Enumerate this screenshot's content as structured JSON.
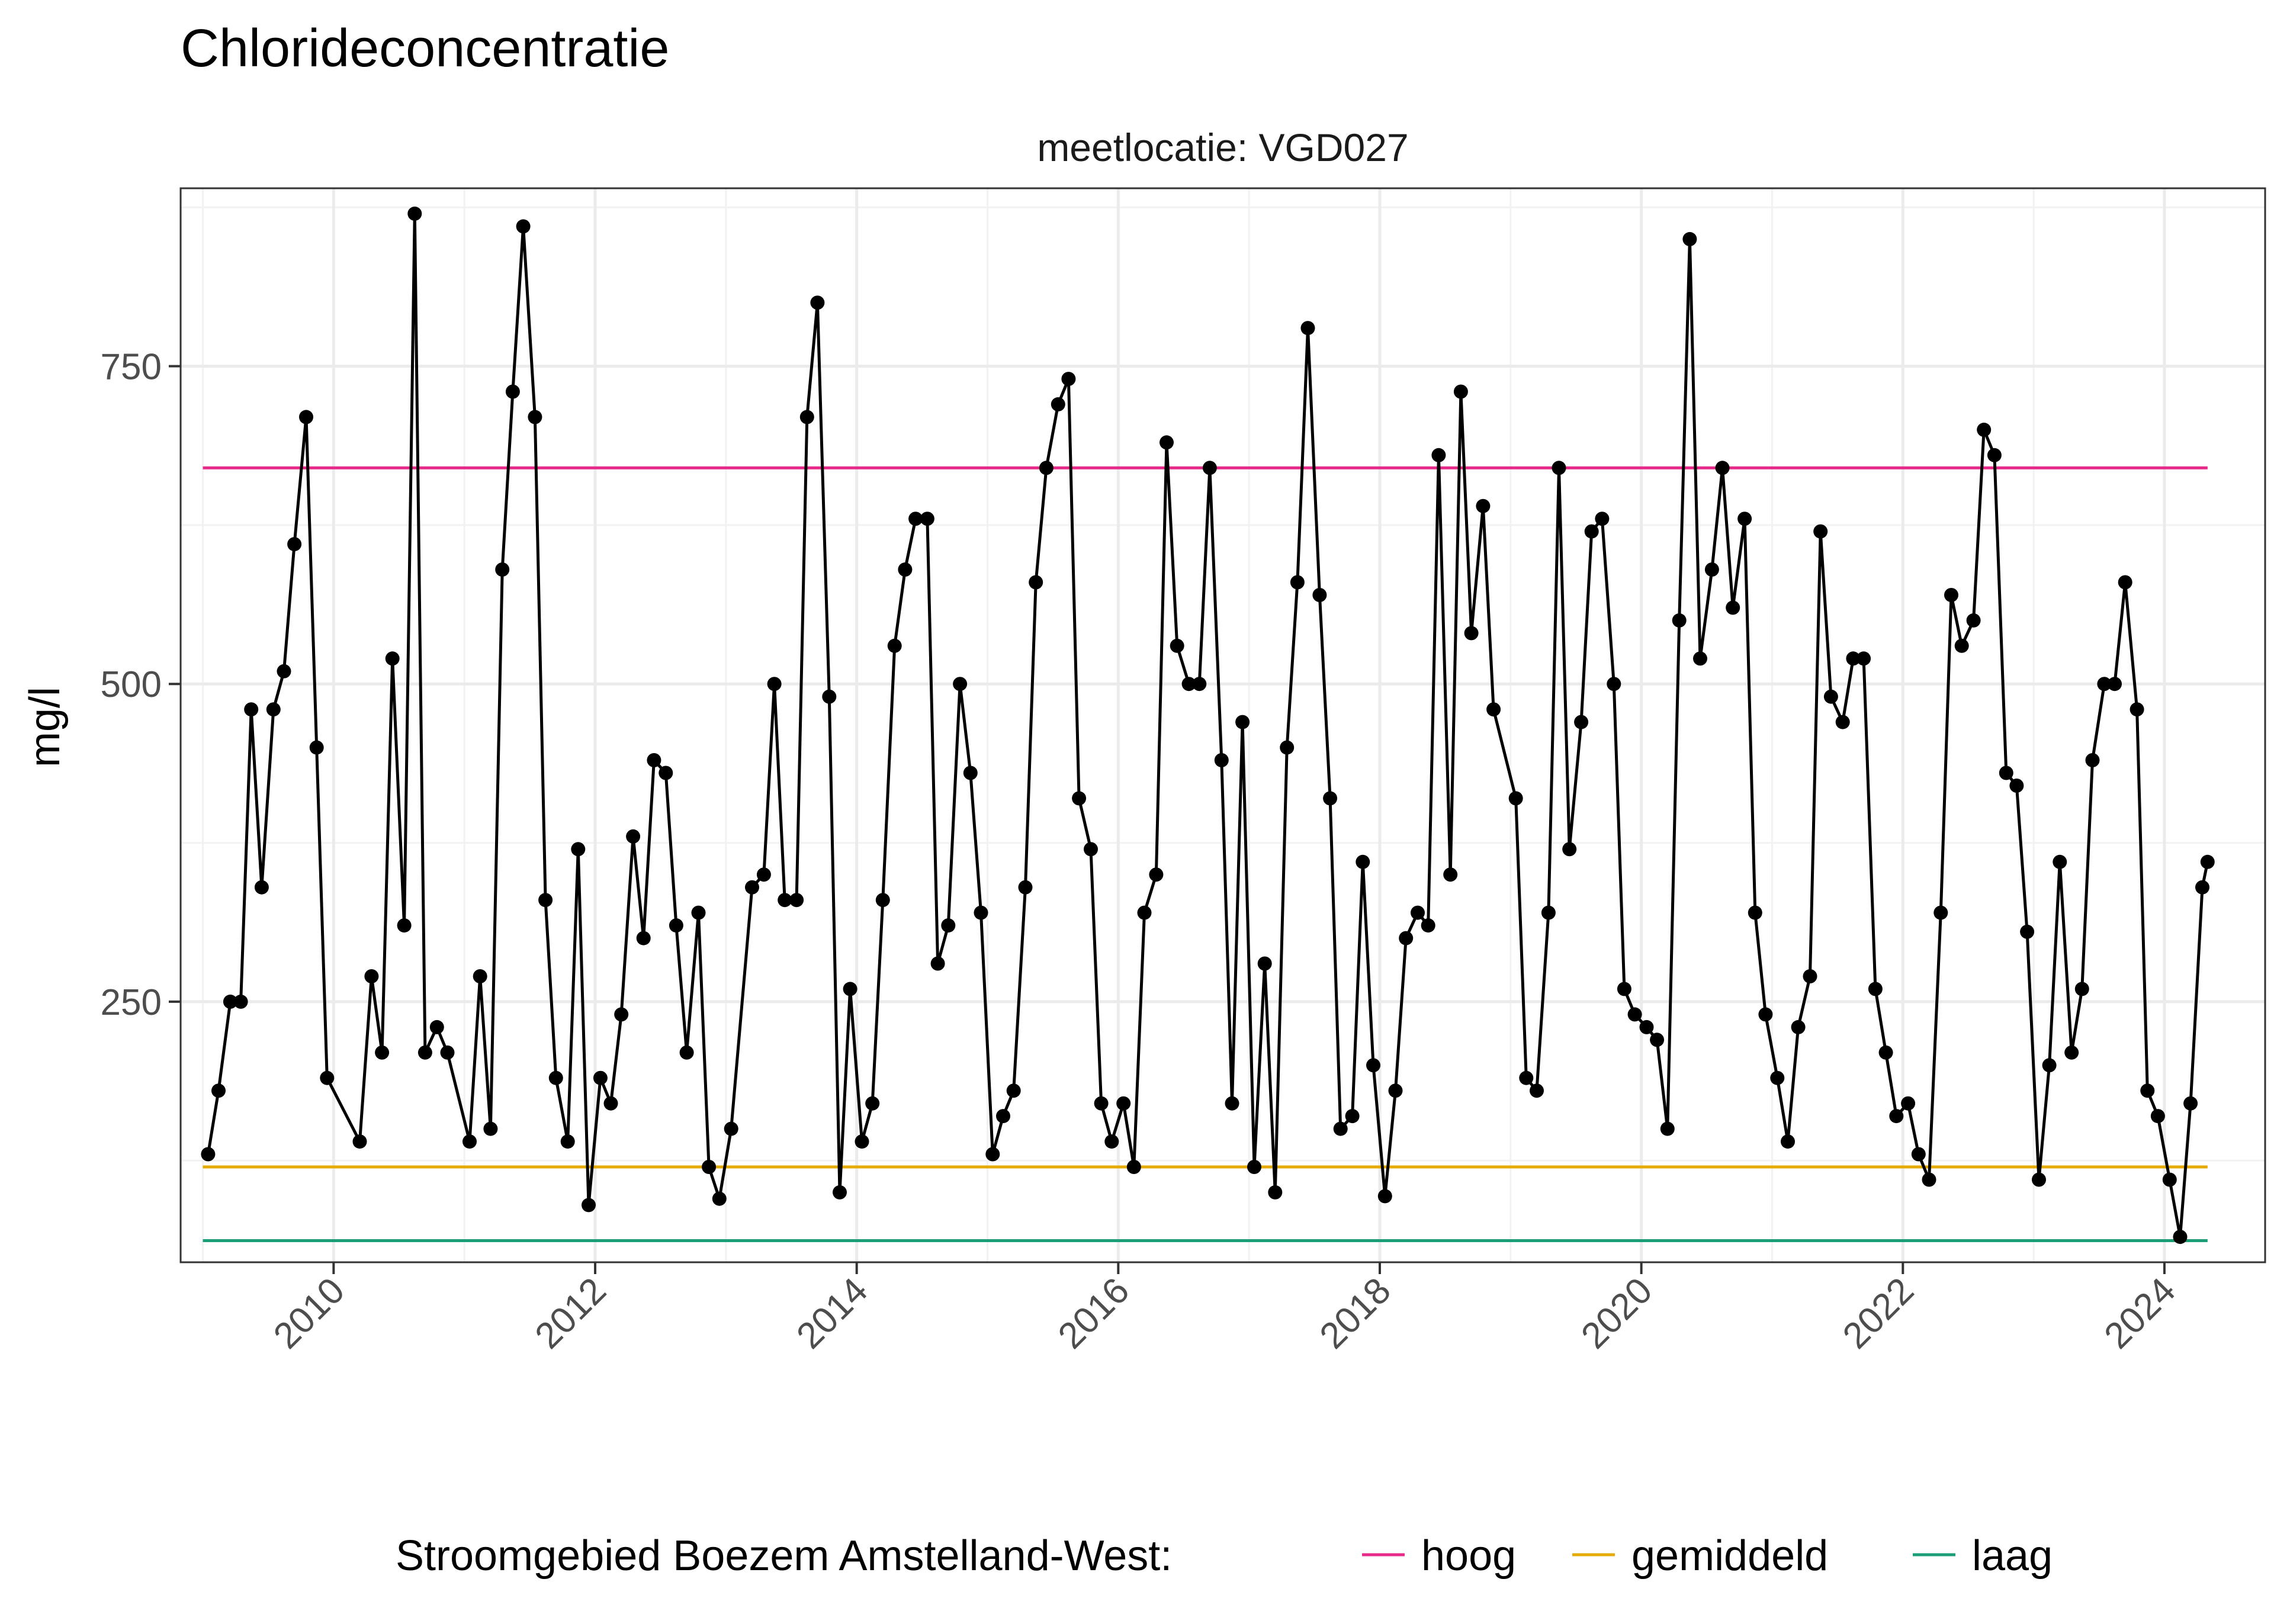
{
  "chart_data": {
    "type": "line",
    "title": "Chlorideconcentratie",
    "subtitle": "meetlocatie: VGD027",
    "xlabel": "",
    "ylabel": "mg/l",
    "xlim": [
      2008.83,
      2024.77
    ],
    "ylim": [
      45,
      890
    ],
    "x_ticks": [
      2010,
      2012,
      2014,
      2016,
      2018,
      2020,
      2022,
      2024
    ],
    "y_ticks": [
      250,
      500,
      750
    ],
    "grid": true,
    "legend": {
      "position": "bottom",
      "title": "Stroomgebied Boezem Amstelland-West:",
      "entries": [
        {
          "label": "hoog",
          "color": "#e7298a"
        },
        {
          "label": "gemiddeld",
          "color": "#e6ab02"
        },
        {
          "label": "laag",
          "color": "#1b9e77"
        }
      ]
    },
    "reference_lines": [
      {
        "name": "hoog",
        "value": 670,
        "color": "#e7298a",
        "x_range": [
          2009.0,
          2024.33
        ]
      },
      {
        "name": "gemiddeld",
        "value": 120,
        "color": "#e6ab02",
        "x_range": [
          2009.0,
          2024.33
        ]
      },
      {
        "name": "laag",
        "value": 62,
        "color": "#1b9e77",
        "x_range": [
          2009.0,
          2024.33
        ]
      }
    ],
    "series": [
      {
        "color": "#000000",
        "points": [
          [
            2009.04,
            130
          ],
          [
            2009.12,
            180
          ],
          [
            2009.21,
            250
          ],
          [
            2009.29,
            250
          ],
          [
            2009.37,
            480
          ],
          [
            2009.45,
            340
          ],
          [
            2009.54,
            480
          ],
          [
            2009.62,
            510
          ],
          [
            2009.7,
            610
          ],
          [
            2009.79,
            710
          ],
          [
            2009.87,
            450
          ],
          [
            2009.95,
            190
          ],
          [
            2010.2,
            140
          ],
          [
            2010.29,
            270
          ],
          [
            2010.37,
            210
          ],
          [
            2010.45,
            520
          ],
          [
            2010.54,
            310
          ],
          [
            2010.62,
            870
          ],
          [
            2010.7,
            210
          ],
          [
            2010.79,
            230
          ],
          [
            2010.87,
            210
          ],
          [
            2011.04,
            140
          ],
          [
            2011.12,
            270
          ],
          [
            2011.2,
            150
          ],
          [
            2011.29,
            590
          ],
          [
            2011.37,
            730
          ],
          [
            2011.45,
            860
          ],
          [
            2011.54,
            710
          ],
          [
            2011.62,
            330
          ],
          [
            2011.7,
            190
          ],
          [
            2011.79,
            140
          ],
          [
            2011.87,
            370
          ],
          [
            2011.95,
            90
          ],
          [
            2012.04,
            190
          ],
          [
            2012.12,
            170
          ],
          [
            2012.2,
            240
          ],
          [
            2012.29,
            380
          ],
          [
            2012.37,
            300
          ],
          [
            2012.45,
            440
          ],
          [
            2012.54,
            430
          ],
          [
            2012.62,
            310
          ],
          [
            2012.7,
            210
          ],
          [
            2012.79,
            320
          ],
          [
            2012.87,
            120
          ],
          [
            2012.95,
            95
          ],
          [
            2013.04,
            150
          ],
          [
            2013.2,
            340
          ],
          [
            2013.29,
            350
          ],
          [
            2013.37,
            500
          ],
          [
            2013.45,
            330
          ],
          [
            2013.54,
            330
          ],
          [
            2013.62,
            710
          ],
          [
            2013.7,
            800
          ],
          [
            2013.79,
            490
          ],
          [
            2013.87,
            100
          ],
          [
            2013.95,
            260
          ],
          [
            2014.04,
            140
          ],
          [
            2014.12,
            170
          ],
          [
            2014.2,
            330
          ],
          [
            2014.29,
            530
          ],
          [
            2014.37,
            590
          ],
          [
            2014.45,
            630
          ],
          [
            2014.54,
            630
          ],
          [
            2014.62,
            280
          ],
          [
            2014.7,
            310
          ],
          [
            2014.79,
            500
          ],
          [
            2014.87,
            430
          ],
          [
            2014.95,
            320
          ],
          [
            2015.04,
            130
          ],
          [
            2015.12,
            160
          ],
          [
            2015.2,
            180
          ],
          [
            2015.29,
            340
          ],
          [
            2015.37,
            580
          ],
          [
            2015.45,
            670
          ],
          [
            2015.54,
            720
          ],
          [
            2015.62,
            740
          ],
          [
            2015.7,
            410
          ],
          [
            2015.79,
            370
          ],
          [
            2015.87,
            170
          ],
          [
            2015.95,
            140
          ],
          [
            2016.04,
            170
          ],
          [
            2016.12,
            120
          ],
          [
            2016.2,
            320
          ],
          [
            2016.29,
            350
          ],
          [
            2016.37,
            690
          ],
          [
            2016.45,
            530
          ],
          [
            2016.54,
            500
          ],
          [
            2016.62,
            500
          ],
          [
            2016.7,
            670
          ],
          [
            2016.79,
            440
          ],
          [
            2016.87,
            170
          ],
          [
            2016.95,
            470
          ],
          [
            2017.04,
            120
          ],
          [
            2017.12,
            280
          ],
          [
            2017.2,
            100
          ],
          [
            2017.29,
            450
          ],
          [
            2017.37,
            580
          ],
          [
            2017.45,
            780
          ],
          [
            2017.54,
            570
          ],
          [
            2017.62,
            410
          ],
          [
            2017.7,
            150
          ],
          [
            2017.79,
            160
          ],
          [
            2017.87,
            360
          ],
          [
            2017.95,
            200
          ],
          [
            2018.04,
            97
          ],
          [
            2018.12,
            180
          ],
          [
            2018.2,
            300
          ],
          [
            2018.29,
            320
          ],
          [
            2018.37,
            310
          ],
          [
            2018.45,
            680
          ],
          [
            2018.54,
            350
          ],
          [
            2018.62,
            730
          ],
          [
            2018.7,
            540
          ],
          [
            2018.79,
            640
          ],
          [
            2018.87,
            480
          ],
          [
            2019.04,
            410
          ],
          [
            2019.12,
            190
          ],
          [
            2019.2,
            180
          ],
          [
            2019.29,
            320
          ],
          [
            2019.37,
            670
          ],
          [
            2019.45,
            370
          ],
          [
            2019.54,
            470
          ],
          [
            2019.62,
            620
          ],
          [
            2019.7,
            630
          ],
          [
            2019.79,
            500
          ],
          [
            2019.87,
            260
          ],
          [
            2019.95,
            240
          ],
          [
            2020.04,
            230
          ],
          [
            2020.12,
            220
          ],
          [
            2020.2,
            150
          ],
          [
            2020.29,
            550
          ],
          [
            2020.37,
            850
          ],
          [
            2020.45,
            520
          ],
          [
            2020.54,
            590
          ],
          [
            2020.62,
            670
          ],
          [
            2020.7,
            560
          ],
          [
            2020.79,
            630
          ],
          [
            2020.87,
            320
          ],
          [
            2020.95,
            240
          ],
          [
            2021.04,
            190
          ],
          [
            2021.12,
            140
          ],
          [
            2021.2,
            230
          ],
          [
            2021.29,
            270
          ],
          [
            2021.37,
            620
          ],
          [
            2021.45,
            490
          ],
          [
            2021.54,
            470
          ],
          [
            2021.62,
            520
          ],
          [
            2021.7,
            520
          ],
          [
            2021.79,
            260
          ],
          [
            2021.87,
            210
          ],
          [
            2021.95,
            160
          ],
          [
            2022.04,
            170
          ],
          [
            2022.12,
            130
          ],
          [
            2022.2,
            110
          ],
          [
            2022.29,
            320
          ],
          [
            2022.37,
            570
          ],
          [
            2022.45,
            530
          ],
          [
            2022.54,
            550
          ],
          [
            2022.62,
            700
          ],
          [
            2022.7,
            680
          ],
          [
            2022.79,
            430
          ],
          [
            2022.87,
            420
          ],
          [
            2022.95,
            305
          ],
          [
            2023.04,
            110
          ],
          [
            2023.12,
            200
          ],
          [
            2023.2,
            360
          ],
          [
            2023.29,
            210
          ],
          [
            2023.37,
            260
          ],
          [
            2023.45,
            440
          ],
          [
            2023.54,
            500
          ],
          [
            2023.62,
            500
          ],
          [
            2023.7,
            580
          ],
          [
            2023.79,
            480
          ],
          [
            2023.87,
            180
          ],
          [
            2023.95,
            160
          ],
          [
            2024.04,
            110
          ],
          [
            2024.12,
            65
          ],
          [
            2024.2,
            170
          ],
          [
            2024.29,
            340
          ],
          [
            2024.33,
            360
          ]
        ]
      }
    ]
  }
}
